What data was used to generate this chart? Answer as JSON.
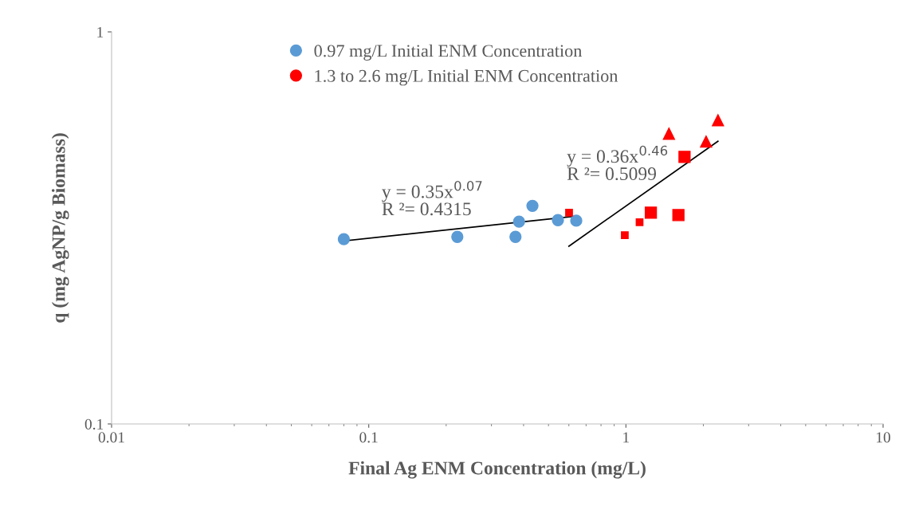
{
  "chart_data": {
    "type": "scatter",
    "xlabel": "Final Ag ENM Concentration (mg/L)",
    "ylabel": "q (mg AgNP/g Biomass)",
    "log": "xy",
    "xlim": [
      0.01,
      10
    ],
    "ylim": [
      0.1,
      1
    ],
    "xticks": [
      0.01,
      0.1,
      1,
      10
    ],
    "yticks": [
      0.1,
      1
    ],
    "grid": false,
    "legend": "top left",
    "series": [
      {
        "name": "0.97 mg/L Initial ENM Concentration",
        "color": "#5b9bd5",
        "marker": "circle",
        "x": [
          0.08,
          0.221,
          0.372,
          0.384,
          0.433,
          0.544,
          0.641
        ],
        "values": [
          0.296,
          0.3,
          0.3,
          0.328,
          0.36,
          0.331,
          0.33
        ]
      },
      {
        "name": "1.3 to 2.6 mg/L Initial ENM Concentration",
        "color": "#ff0000",
        "marker": "square",
        "x": [
          0.601,
          0.99,
          1.13
        ],
        "values": [
          0.346,
          0.303,
          0.327
        ]
      },
      {
        "color": "#ff0000",
        "marker": "square",
        "x": [
          1.25,
          1.6,
          1.69
        ],
        "values": [
          0.346,
          0.341,
          0.48
        ]
      },
      {
        "color": "#ff0000",
        "marker": "triangle",
        "x": [
          1.47,
          2.05,
          2.28
        ],
        "values": [
          0.55,
          0.525,
          0.595
        ]
      },
      {
        "type": "line",
        "color": "#000000",
        "marker": "none",
        "x": [
          0.08,
          0.641
        ],
        "values": [
          0.293,
          0.339
        ]
      },
      {
        "type": "line",
        "color": "#000000",
        "marker": "none",
        "x": [
          0.6,
          2.28
        ],
        "values": [
          0.284,
          0.526
        ]
      }
    ],
    "annotations": [
      "y = 0.35x$^{0.07}$\nR ²= 0.4315",
      "y = 0.36x$^{0.46}$\nR ²= 0.5099"
    ]
  }
}
